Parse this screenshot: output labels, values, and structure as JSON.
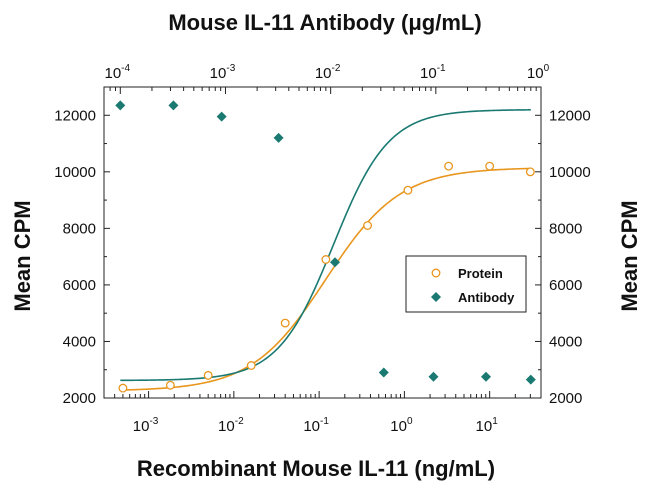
{
  "chart_data": {
    "type": "scatter",
    "title_top": "Mouse IL-11 Antibody (μg/mL)",
    "xlabel": "Recombinant Mouse IL-11 (ng/mL)",
    "ylabel_left": "Mean CPM",
    "ylabel_right": "Mean CPM",
    "x_bottom": {
      "scale": "log",
      "lim": [
        0.0003,
        40
      ],
      "ticks": [
        {
          "value": 0.001,
          "base": "10",
          "exp": "-3"
        },
        {
          "value": 0.01,
          "base": "10",
          "exp": "-2"
        },
        {
          "value": 0.1,
          "base": "10",
          "exp": "-1"
        },
        {
          "value": 1,
          "base": "10",
          "exp": "0"
        },
        {
          "value": 10,
          "base": "10",
          "exp": "1"
        }
      ]
    },
    "x_top": {
      "scale": "log",
      "lim": [
        7e-05,
        1
      ],
      "ticks": [
        {
          "value": 0.0001,
          "base": "10",
          "exp": "-4"
        },
        {
          "value": 0.001,
          "base": "10",
          "exp": "-3"
        },
        {
          "value": 0.01,
          "base": "10",
          "exp": "-2"
        },
        {
          "value": 0.1,
          "base": "10",
          "exp": "-1"
        },
        {
          "value": 1,
          "base": "10",
          "exp": "0"
        }
      ]
    },
    "y": {
      "lim": [
        2000,
        13000
      ],
      "ticks": [
        "2000",
        "4000",
        "6000",
        "8000",
        "10000",
        "12000"
      ]
    },
    "series": [
      {
        "name": "Protein",
        "axis": "bottom",
        "marker": "open-circle",
        "color": "#E8961E",
        "x": [
          0.0005,
          0.0018,
          0.005,
          0.016,
          0.04,
          0.12,
          0.37,
          1.1,
          3.3,
          10,
          30
        ],
        "y": [
          2350,
          2450,
          2800,
          3150,
          4650,
          6900,
          8100,
          9350,
          10200,
          10200,
          10000
        ],
        "fit": {
          "bottom": 2250,
          "top": 10150,
          "ec50": 0.12,
          "hill": 1.0
        }
      },
      {
        "name": "Antibody",
        "axis": "top",
        "marker": "filled-diamond",
        "color": "#1A7A72",
        "x": [
          0.0001,
          0.00032,
          0.00092,
          0.0032,
          0.011,
          0.032,
          0.095,
          0.3,
          0.8
        ],
        "y": [
          12350,
          12350,
          11950,
          11200,
          6800,
          2900,
          2750,
          2750,
          2650
        ],
        "fit": {
          "bottom": 2620,
          "top": 12200,
          "ec50": 0.0106,
          "hill": 1.65
        }
      }
    ],
    "legend": {
      "position": "right-middle",
      "entries": [
        "Protein",
        "Antibody"
      ]
    },
    "grid": false
  }
}
